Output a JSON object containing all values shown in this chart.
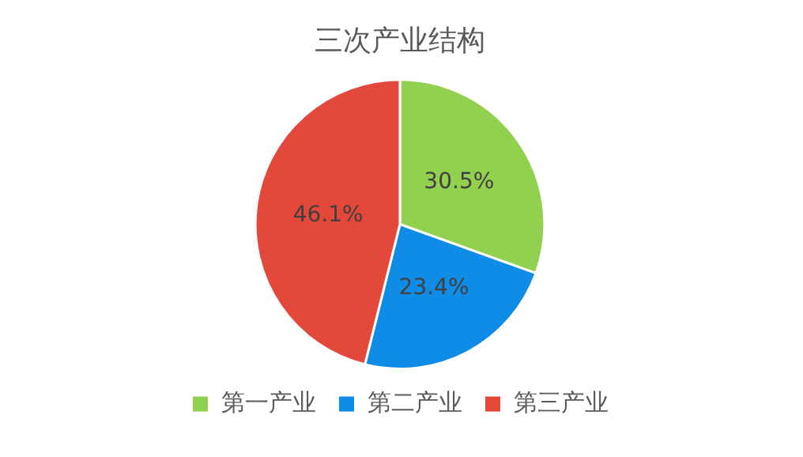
{
  "chart_data": {
    "type": "pie",
    "title": "三次产业结构",
    "categories": [
      "第一产业",
      "第二产业",
      "第三产业"
    ],
    "values": [
      30.5,
      23.4,
      46.1
    ],
    "colors": [
      "#92d050",
      "#0f8ce6",
      "#e4483a"
    ],
    "value_labels": [
      "30.5%",
      "23.4%",
      "46.1%"
    ],
    "legend": "bottom"
  }
}
